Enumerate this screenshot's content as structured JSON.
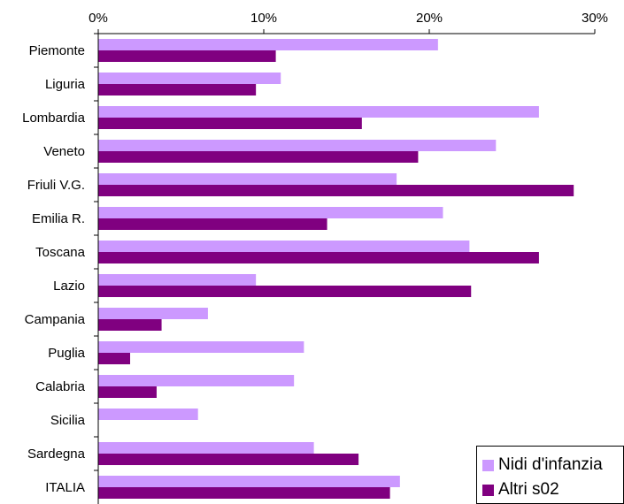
{
  "chart_data": {
    "type": "bar",
    "orientation": "horizontal",
    "categories": [
      "Piemonte",
      "Liguria",
      "Lombardia",
      "Veneto",
      "Friuli V.G.",
      "Emilia R.",
      "Toscana",
      "Lazio",
      "Campania",
      "Puglia",
      "Calabria",
      "Sicilia",
      "Sardegna",
      "ITALIA"
    ],
    "series": [
      {
        "name": "Nidi d'infanzia",
        "color": "#cc99ff",
        "values": [
          20.5,
          11.0,
          26.6,
          24.0,
          18.0,
          20.8,
          22.4,
          9.5,
          6.6,
          12.4,
          11.8,
          6.0,
          13.0,
          18.2
        ]
      },
      {
        "name": "Altri s02",
        "color": "#800080",
        "values": [
          10.7,
          9.5,
          15.9,
          19.3,
          28.7,
          13.8,
          26.6,
          22.5,
          3.8,
          1.9,
          3.5,
          0.0,
          15.7,
          17.6
        ]
      }
    ],
    "xlim": [
      0,
      30
    ],
    "xticks": [
      "0%",
      "10%",
      "20%",
      "30%"
    ],
    "axis_position": "top",
    "legend_position": "bottom-right",
    "grid": false
  }
}
